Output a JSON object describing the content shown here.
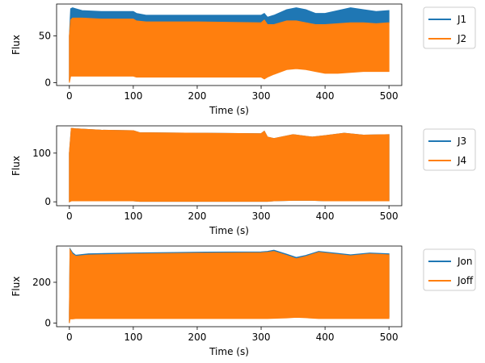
{
  "chart_data": [
    {
      "type": "area",
      "xlabel": "Time (s)",
      "ylabel": "Flux",
      "xlim": [
        -20,
        520
      ],
      "ylim": [
        -3,
        84
      ],
      "xticks": [
        0,
        100,
        200,
        300,
        400,
        500
      ],
      "yticks": [
        0,
        50
      ],
      "legend_position": "outside-right",
      "series": [
        {
          "name": "J1",
          "color": "#1f77b4",
          "x": [
            0,
            2,
            5,
            10,
            20,
            50,
            100,
            105,
            120,
            200,
            300,
            305,
            310,
            320,
            340,
            355,
            370,
            385,
            400,
            420,
            440,
            460,
            480,
            500
          ],
          "upper": [
            50,
            79,
            80,
            79,
            77,
            76,
            76,
            74,
            72,
            72,
            72,
            74,
            70,
            72,
            78,
            80,
            78,
            74,
            74,
            77,
            80,
            78,
            76,
            77
          ],
          "lower": [
            2,
            67,
            69,
            69,
            69,
            68,
            68,
            66,
            65,
            65,
            64,
            67,
            62,
            62,
            66,
            66,
            64,
            62,
            62,
            63,
            64,
            64,
            63,
            64
          ]
        },
        {
          "name": "J2",
          "color": "#ff7f0e",
          "x": [
            0,
            2,
            5,
            10,
            20,
            50,
            100,
            105,
            120,
            200,
            300,
            305,
            310,
            320,
            340,
            355,
            370,
            385,
            400,
            420,
            440,
            460,
            480,
            500
          ],
          "upper": [
            50,
            67,
            69,
            69,
            69,
            68,
            68,
            66,
            65,
            65,
            64,
            67,
            62,
            62,
            66,
            66,
            64,
            62,
            62,
            63,
            64,
            64,
            63,
            64
          ],
          "lower": [
            0,
            7,
            7,
            7,
            7,
            7,
            7,
            6,
            6,
            6,
            6,
            4,
            6,
            9,
            14,
            15,
            14,
            12,
            10,
            10,
            11,
            12,
            12,
            12
          ]
        }
      ]
    },
    {
      "type": "area",
      "xlabel": "Time (s)",
      "ylabel": "Flux",
      "xlim": [
        -20,
        520
      ],
      "ylim": [
        -8,
        156
      ],
      "xticks": [
        0,
        100,
        200,
        300,
        400,
        500
      ],
      "yticks": [
        0,
        100
      ],
      "legend_position": "outside-right",
      "series": [
        {
          "name": "J3",
          "color": "#1f77b4",
          "x": [
            0,
            3,
            10,
            50,
            100,
            110,
            200,
            300,
            305,
            310,
            320,
            350,
            380,
            400,
            430,
            460,
            500
          ],
          "upper": [
            100,
            151,
            150,
            147,
            146,
            142,
            141,
            140,
            145,
            133,
            130,
            138,
            133,
            136,
            141,
            137,
            138
          ],
          "lower": [
            0,
            2,
            2,
            2,
            2,
            1,
            1,
            1,
            1,
            1,
            2,
            3,
            3,
            2,
            2,
            2,
            2
          ]
        },
        {
          "name": "J4",
          "color": "#ff7f0e",
          "x": [
            0,
            3,
            10,
            50,
            100,
            110,
            200,
            300,
            305,
            310,
            320,
            350,
            380,
            400,
            430,
            460,
            500
          ],
          "upper": [
            100,
            151,
            150,
            147,
            146,
            142,
            141,
            140,
            145,
            133,
            130,
            138,
            133,
            136,
            141,
            137,
            138
          ],
          "lower": [
            0,
            2,
            2,
            2,
            2,
            1,
            1,
            1,
            1,
            1,
            2,
            3,
            3,
            2,
            2,
            2,
            2
          ]
        }
      ]
    },
    {
      "type": "area",
      "xlabel": "Time (s)",
      "ylabel": "Flux",
      "xlim": [
        -20,
        520
      ],
      "ylim": [
        -18,
        378
      ],
      "xticks": [
        0,
        100,
        200,
        300,
        400,
        500
      ],
      "yticks": [
        0,
        200
      ],
      "legend_position": "outside-right",
      "series": [
        {
          "name": "Jon",
          "color": "#1f77b4",
          "x": [
            0,
            1,
            5,
            10,
            30,
            100,
            200,
            300,
            310,
            320,
            340,
            355,
            370,
            390,
            420,
            440,
            470,
            500
          ],
          "upper": [
            50,
            365,
            345,
            333,
            340,
            344,
            348,
            349,
            352,
            358,
            338,
            322,
            332,
            352,
            342,
            335,
            344,
            340
          ],
          "lower": [
            0,
            40,
            30,
            30,
            30,
            30,
            30,
            30,
            30,
            31,
            33,
            35,
            34,
            30,
            30,
            30,
            30,
            30
          ]
        },
        {
          "name": "Joff",
          "color": "#ff7f0e",
          "x": [
            0,
            1,
            5,
            10,
            30,
            100,
            200,
            300,
            310,
            320,
            340,
            355,
            370,
            390,
            420,
            440,
            470,
            500
          ],
          "upper": [
            50,
            360,
            338,
            328,
            334,
            339,
            343,
            345,
            347,
            352,
            332,
            316,
            327,
            347,
            337,
            330,
            339,
            335
          ],
          "lower": [
            0,
            20,
            20,
            22,
            22,
            22,
            22,
            22,
            22,
            23,
            25,
            28,
            26,
            22,
            22,
            22,
            22,
            22
          ]
        }
      ]
    }
  ]
}
